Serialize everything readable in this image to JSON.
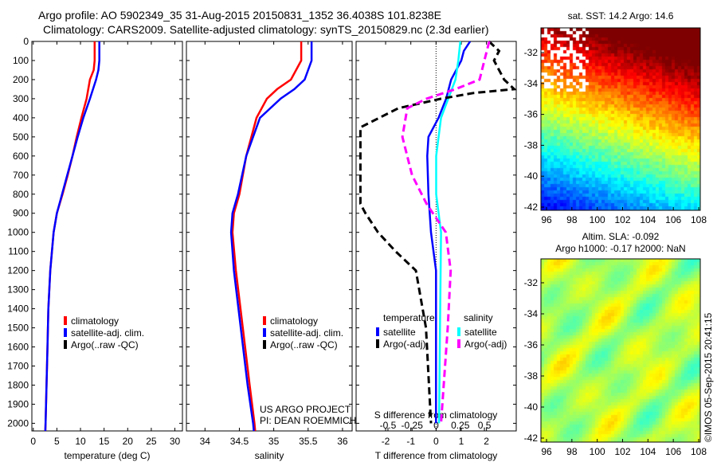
{
  "title_line1": "Argo profile: AO 5902349_35 31-Aug-2015 20150831_1352 36.4038S 101.8238E",
  "title_line2": "Climatology: CARS2009. Satellite-adjusted climatology: synTS_20150829.nc (2.3d earlier)",
  "credit": "©IMOS 05-Sep-2015 20:41:15",
  "colors": {
    "climatology": "#ff0000",
    "satellite": "#0000ff",
    "argo": "#000000",
    "sal_satellite": "#00ffff",
    "sal_argo": "#ff00ff"
  },
  "chart_data": [
    {
      "type": "line",
      "title": "",
      "xlabel": "temperature (deg C)",
      "ylabel": "",
      "xlim": [
        -0.3,
        31.6
      ],
      "ylim": [
        2040,
        0
      ],
      "xticks": [
        "0",
        "5",
        "10",
        "15",
        "20",
        "25",
        "30"
      ],
      "yticks": [
        "0",
        "100",
        "200",
        "300",
        "400",
        "500",
        "600",
        "700",
        "800",
        "900",
        "1000",
        "1100",
        "1200",
        "1300",
        "1400",
        "1500",
        "1600",
        "1700",
        "1800",
        "1900",
        "2000"
      ],
      "legend": [
        "climatology",
        "satellite-adj. clim.",
        "Argo(..raw -QC)"
      ],
      "series": [
        {
          "name": "climatology",
          "color": "#ff0000",
          "depth": [
            0,
            100,
            150,
            200,
            300,
            400,
            500,
            600,
            700,
            800,
            900,
            1000,
            1200,
            1400,
            1600,
            1800,
            2000,
            2040
          ],
          "values": [
            13,
            13,
            12.8,
            12,
            11.3,
            10.2,
            9.2,
            8.3,
            7.3,
            6.2,
            5,
            4.3,
            3.6,
            3.2,
            3.0,
            2.8,
            2.6,
            2.55
          ]
        },
        {
          "name": "satellite-adj. clim.",
          "color": "#0000ff",
          "depth": [
            0,
            100,
            150,
            200,
            300,
            400,
            500,
            600,
            700,
            800,
            900,
            1000,
            1200,
            1400,
            1600,
            1800,
            2000,
            2040
          ],
          "values": [
            14,
            14,
            13.8,
            13.3,
            12,
            10.6,
            9.4,
            8.3,
            7.2,
            6.1,
            5,
            4.3,
            3.6,
            3.2,
            3.0,
            2.8,
            2.6,
            2.55
          ]
        }
      ]
    },
    {
      "type": "line",
      "xlabel": "salinity",
      "xlim": [
        33.73,
        36.14
      ],
      "ylim": [
        2040,
        0
      ],
      "xticks": [
        "34",
        "34.5",
        "35",
        "35.5",
        "36"
      ],
      "legend": [
        "climatology",
        "satellite-adj. clim.",
        "Argo(..raw -QC)"
      ],
      "annotation": [
        "US ARGO PROJECT",
        "PI: DEAN ROEMMICH"
      ],
      "series": [
        {
          "name": "climatology",
          "color": "#ff0000",
          "depth": [
            0,
            100,
            200,
            250,
            300,
            400,
            600,
            800,
            900,
            1000,
            1200,
            1500,
            1800,
            2000,
            2040
          ],
          "values": [
            35.4,
            35.4,
            35.25,
            35.05,
            34.9,
            34.75,
            34.6,
            34.5,
            34.42,
            34.4,
            34.45,
            34.55,
            34.65,
            34.72,
            34.73
          ]
        },
        {
          "name": "satellite-adj. clim.",
          "color": "#0000ff",
          "depth": [
            0,
            100,
            200,
            250,
            300,
            400,
            600,
            800,
            900,
            1000,
            1200,
            1500,
            1800,
            2000,
            2040
          ],
          "values": [
            35.55,
            35.55,
            35.45,
            35.3,
            35.1,
            34.8,
            34.6,
            34.48,
            34.4,
            34.38,
            34.42,
            34.52,
            34.62,
            34.7,
            34.71
          ]
        }
      ]
    },
    {
      "type": "line",
      "xlabel": "T difference from climatology",
      "xlabel2": "S difference from climatology",
      "xlim": [
        -3.17,
        3.18
      ],
      "xlim2": [
        -0.83,
        0.83
      ],
      "ylim": [
        2040,
        0
      ],
      "xticks": [
        "-2",
        "-1",
        "0",
        "1",
        "2"
      ],
      "xticks2": [
        "-0.5",
        "-0.25",
        "0",
        "0.25",
        "0.5"
      ],
      "legend_headers": [
        "temperature",
        "salinity"
      ],
      "legend": [
        "satellite",
        "Argo(-adj)",
        "satellite",
        "Argo(-adj)"
      ],
      "series": [
        {
          "name": "T satellite",
          "axis": "T",
          "color": "#0000ff",
          "dash": false,
          "depth": [
            0,
            50,
            100,
            200,
            300,
            400,
            500,
            600,
            800,
            1000,
            1200,
            1500,
            2000
          ],
          "values": [
            1.35,
            1.1,
            1.0,
            0.6,
            0.4,
            0.1,
            -0.3,
            -0.35,
            -0.3,
            -0.2,
            0,
            0,
            0
          ]
        },
        {
          "name": "S satellite",
          "axis": "S",
          "color": "#00ffff",
          "dash": false,
          "depth": [
            0,
            100,
            200,
            400,
            600,
            800,
            1000,
            1500,
            2000
          ],
          "values": [
            0.25,
            0.23,
            0.2,
            0.05,
            0,
            0,
            0.05,
            0.04,
            0.03
          ]
        },
        {
          "name": "T Argo(-adj)",
          "axis": "T",
          "color": "#000000",
          "dash": true,
          "depth": [
            0,
            50,
            100,
            200,
            250,
            270,
            300,
            350,
            450,
            850,
            900,
            1000,
            1100,
            1200,
            1500,
            2000
          ],
          "values": [
            2.1,
            2.5,
            2.3,
            2.7,
            3.1,
            1.5,
            0.2,
            -1.5,
            -3.0,
            -3.0,
            -2.8,
            -2.3,
            -1.6,
            -0.8,
            -0.4,
            -0.2
          ]
        },
        {
          "name": "S Argo(-adj)",
          "axis": "S",
          "color": "#ff00ff",
          "dash": true,
          "depth": [
            0,
            100,
            200,
            250,
            300,
            350,
            500,
            700,
            850,
            1000,
            1200,
            1500,
            2000
          ],
          "values": [
            0.55,
            0.5,
            0.45,
            0.2,
            -0.1,
            -0.3,
            -0.35,
            -0.25,
            -0.1,
            0.1,
            0.15,
            0.12,
            0.05
          ]
        }
      ]
    },
    {
      "type": "heatmap",
      "title": "sat. SST: 14.2 Argo: 14.6",
      "xlim": [
        95.6,
        108.1
      ],
      "ylim": [
        -42.3,
        -30.1
      ],
      "xticks": [
        "96",
        "98",
        "100",
        "102",
        "104",
        "106",
        "108"
      ],
      "yticks": [
        "-32",
        "-34",
        "-36",
        "-38",
        "-40",
        "-42"
      ]
    },
    {
      "type": "heatmap",
      "title": "Altim. SLA: -0.092",
      "subtitle": "Argo h1000: -0.17 h2000: NaN",
      "xlim": [
        95.6,
        108.1
      ],
      "ylim": [
        -42.3,
        -30.4
      ],
      "xticks": [
        "96",
        "98",
        "100",
        "102",
        "104",
        "106",
        "108"
      ],
      "yticks": [
        "-32",
        "-34",
        "-36",
        "-38",
        "-40",
        "-42"
      ]
    }
  ]
}
